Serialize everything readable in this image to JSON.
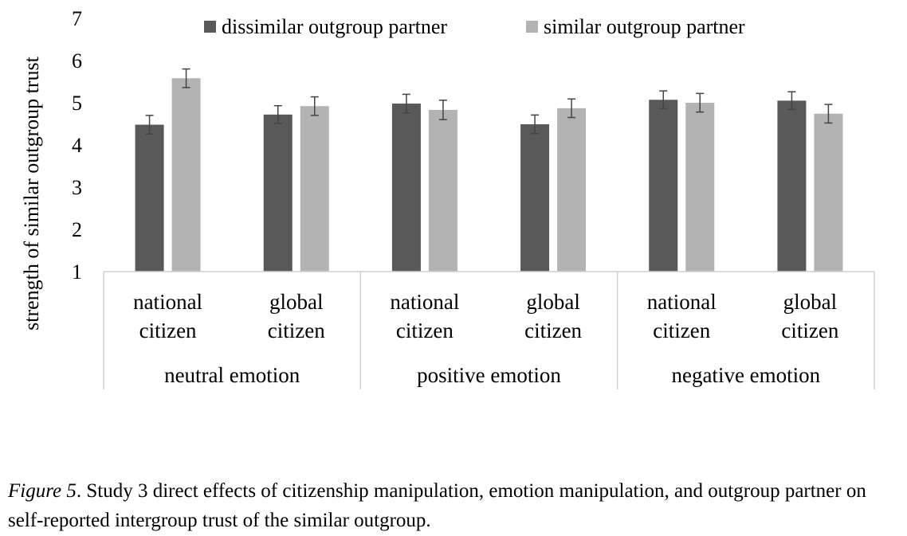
{
  "chart_data": {
    "type": "bar",
    "ylabel": "strength of similar outgroup trust",
    "ylim": [
      1,
      7
    ],
    "yticks": [
      1,
      2,
      3,
      4,
      5,
      6,
      7
    ],
    "grid": false,
    "legend_position": "top",
    "groups": [
      {
        "label": "neutral emotion",
        "categories": [
          "national\ncitizen",
          "global\ncitizen"
        ]
      },
      {
        "label": "positive emotion",
        "categories": [
          "national\ncitizen",
          "global\ncitizen"
        ]
      },
      {
        "label": "negative emotion",
        "categories": [
          "national\ncitizen",
          "global\ncitizen"
        ]
      }
    ],
    "series": [
      {
        "name": "dissimilar outgroup partner",
        "color": "#595959",
        "values": [
          4.48,
          4.72,
          4.98,
          4.49,
          5.07,
          5.05
        ],
        "errors": [
          0.22,
          0.21,
          0.22,
          0.22,
          0.21,
          0.21
        ]
      },
      {
        "name": "similar outgroup partner",
        "color": "#b3b3b3",
        "values": [
          5.58,
          4.92,
          4.83,
          4.87,
          5.0,
          4.74
        ],
        "errors": [
          0.22,
          0.22,
          0.23,
          0.22,
          0.22,
          0.22
        ]
      }
    ]
  },
  "caption": {
    "figure_label": "Figure 5",
    "text": ". Study 3 direct effects of citizenship manipulation, emotion manipulation, and outgroup partner on self-reported intergroup trust of the similar outgroup."
  }
}
